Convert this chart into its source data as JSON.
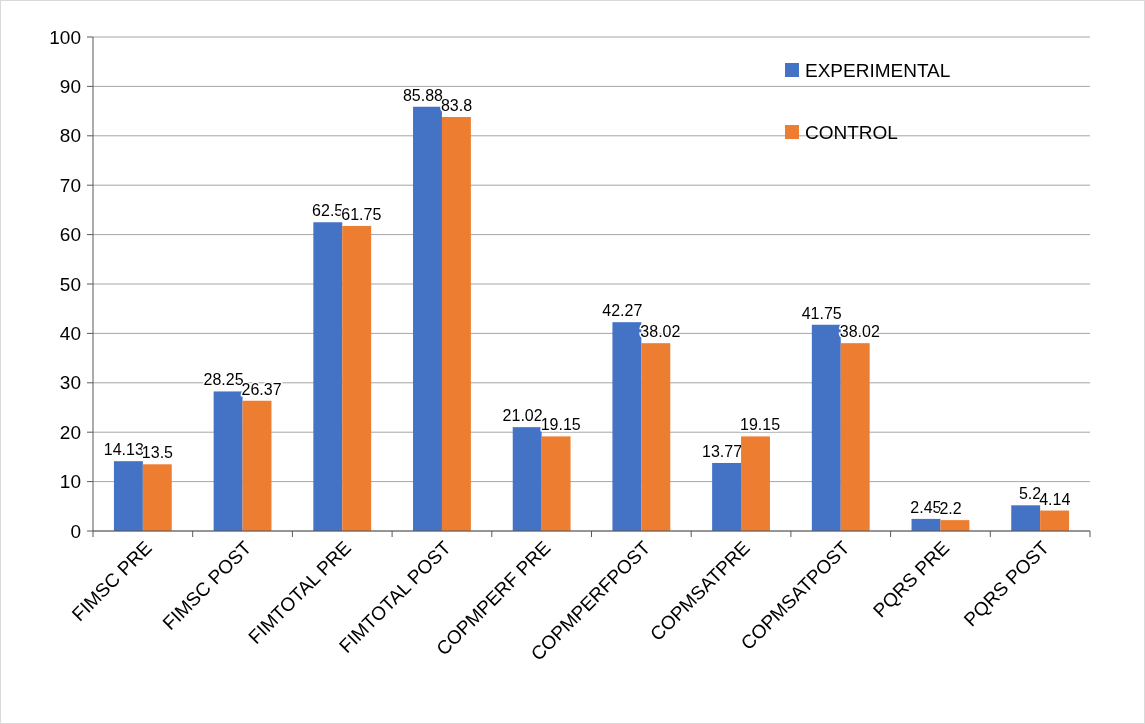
{
  "chart_data": {
    "type": "bar",
    "categories": [
      "FIMSC PRE",
      "FIMSC POST",
      "FIMTOTAL PRE",
      "FIMTOTAL POST",
      "COPMPERF PRE",
      "COPMPERFPOST",
      "COPMSATPRE",
      "COPMSATPOST",
      "PQRS PRE",
      "PQRS POST"
    ],
    "series": [
      {
        "name": "EXPERIMENTAL",
        "color": "#4472c4",
        "values": [
          14.13,
          28.25,
          62.5,
          85.88,
          21.02,
          42.27,
          13.77,
          41.75,
          2.45,
          5.2
        ]
      },
      {
        "name": "CONTROL",
        "color": "#ed7d31",
        "values": [
          13.5,
          26.37,
          61.75,
          83.8,
          19.15,
          38.02,
          19.15,
          38.02,
          2.2,
          4.14
        ]
      }
    ],
    "ylim": [
      0,
      100
    ],
    "yticks": [
      0,
      10,
      20,
      30,
      40,
      50,
      60,
      70,
      80,
      90,
      100
    ],
    "grid": "y",
    "legend": "top right",
    "data_labels": true
  }
}
